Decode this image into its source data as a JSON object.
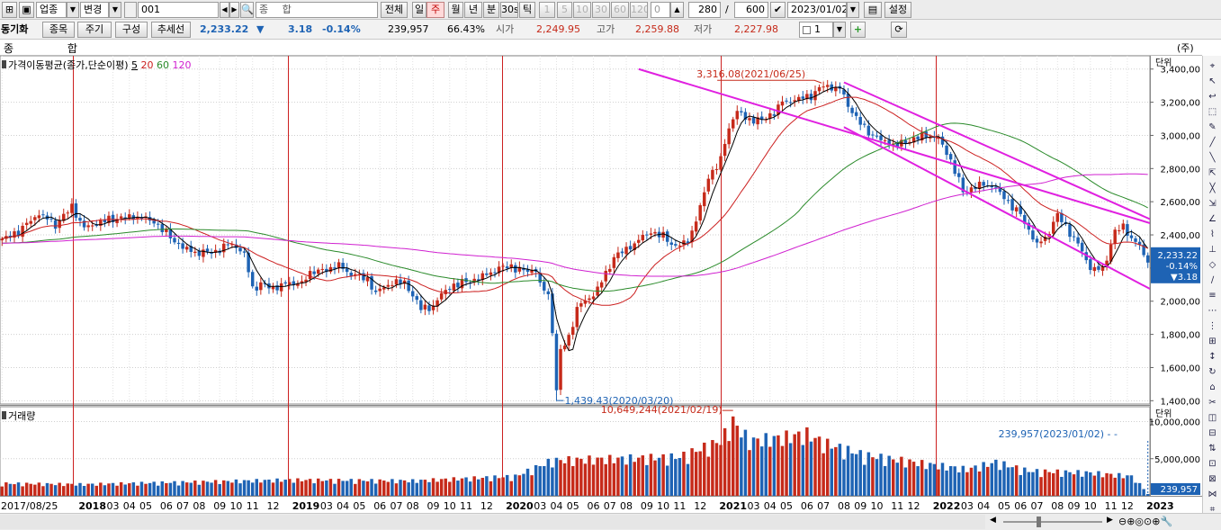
{
  "toolbar": {
    "market_type": "업종",
    "change_button": "변경",
    "code": "001",
    "name": "종 합",
    "all_button": "전체",
    "periods": [
      "일",
      "주",
      "월",
      "년",
      "분",
      "30s",
      "틱"
    ],
    "selected_period": "주",
    "minute_buttons": [
      "1",
      "5",
      "10",
      "30",
      "60",
      "120"
    ],
    "tick_value": "0",
    "count": "280",
    "total": "600",
    "date": "2023/01/02",
    "settings": "설정"
  },
  "toolbar2": {
    "sync_label": "동기화",
    "tabs": [
      "종목",
      "주기",
      "구성",
      "추세선"
    ],
    "price": "2,233.22",
    "change_arrow": "▼",
    "change": "3.18",
    "change_pct": "-0.14%",
    "volume": "239,957",
    "ratio": "66.43%",
    "open_label": "시가",
    "open": "2,249.95",
    "high_label": "고가",
    "high": "2,259.88",
    "low_label": "저가",
    "low": "2,227.98",
    "spin_value": "1"
  },
  "chart_header": {
    "name": "종 합",
    "unit_label": "(주)",
    "price_legend": "가격이동평균(종가,단순이평)",
    "ma_labels": [
      "5",
      "20",
      "60",
      "120"
    ],
    "volume_legend": "거래량",
    "axis_unit_price": "단위",
    "axis_unit_volume": "단위"
  },
  "colors": {
    "up": "#c62a1a",
    "down": "#1e63b4",
    "ma5": "#000000",
    "ma20": "#cc2020",
    "ma60": "#2a8a2a",
    "ma120": "#d020d0",
    "trendline": "#e020e0",
    "year_line": "#cc2020"
  },
  "annotations": {
    "high": "3,316.08(2021/06/25)",
    "low": "1,439.43(2020/03/20)",
    "vol_max": "10,649,244(2021/02/19)",
    "vol_last": "239,957(2023/01/02)"
  },
  "price_tag": {
    "value": "2,233.22",
    "pct": "-0.14%",
    "change": "▼3.18"
  },
  "volume_tag": "239,957",
  "chart_data": {
    "type": "candlestick",
    "price_axis": {
      "ticks": [
        1400,
        1600,
        1800,
        2000,
        2200,
        2400,
        2600,
        2800,
        3000,
        3200,
        3400
      ],
      "tick_labels": [
        "1,400,00",
        "1,600,00",
        "1,800,00",
        "2,000,00",
        "2,200,00",
        "2,400,00",
        "2,600,00",
        "2,800,00",
        "3,000,00",
        "3,200,00",
        "3,400,00"
      ],
      "range": [
        1380,
        3480
      ]
    },
    "volume_axis": {
      "ticks": [
        5000000,
        10000000
      ],
      "tick_labels": [
        "5,000,000",
        "10,000,000"
      ],
      "range": [
        0,
        12000000
      ]
    },
    "x_labels": [
      {
        "w": 0,
        "t": "2017/08/25",
        "year": false
      },
      {
        "w": 22,
        "t": "2018",
        "year": true
      },
      {
        "w": 27,
        "t": "03",
        "year": false
      },
      {
        "w": 31,
        "t": "04",
        "year": false
      },
      {
        "w": 35,
        "t": "05",
        "year": false
      },
      {
        "w": 40,
        "t": "06",
        "year": false
      },
      {
        "w": 44,
        "t": "07",
        "year": false
      },
      {
        "w": 48,
        "t": "08",
        "year": false
      },
      {
        "w": 53,
        "t": "09",
        "year": false
      },
      {
        "w": 57,
        "t": "10",
        "year": false
      },
      {
        "w": 61,
        "t": "11",
        "year": false
      },
      {
        "w": 66,
        "t": "12",
        "year": false
      },
      {
        "w": 74,
        "t": "2019",
        "year": true
      },
      {
        "w": 79,
        "t": "03",
        "year": false
      },
      {
        "w": 83,
        "t": "04",
        "year": false
      },
      {
        "w": 87,
        "t": "05",
        "year": false
      },
      {
        "w": 92,
        "t": "06",
        "year": false
      },
      {
        "w": 96,
        "t": "07",
        "year": false
      },
      {
        "w": 100,
        "t": "08",
        "year": false
      },
      {
        "w": 105,
        "t": "09",
        "year": false
      },
      {
        "w": 109,
        "t": "10",
        "year": false
      },
      {
        "w": 113,
        "t": "11",
        "year": false
      },
      {
        "w": 118,
        "t": "12",
        "year": false
      },
      {
        "w": 126,
        "t": "2020",
        "year": true
      },
      {
        "w": 131,
        "t": "03",
        "year": false
      },
      {
        "w": 135,
        "t": "04",
        "year": false
      },
      {
        "w": 139,
        "t": "05",
        "year": false
      },
      {
        "w": 144,
        "t": "06",
        "year": false
      },
      {
        "w": 148,
        "t": "07",
        "year": false
      },
      {
        "w": 152,
        "t": "08",
        "year": false
      },
      {
        "w": 157,
        "t": "09",
        "year": false
      },
      {
        "w": 161,
        "t": "10",
        "year": false
      },
      {
        "w": 165,
        "t": "11",
        "year": false
      },
      {
        "w": 170,
        "t": "12",
        "year": false
      },
      {
        "w": 178,
        "t": "2021",
        "year": true
      },
      {
        "w": 183,
        "t": "03",
        "year": false
      },
      {
        "w": 187,
        "t": "04",
        "year": false
      },
      {
        "w": 191,
        "t": "05",
        "year": false
      },
      {
        "w": 196,
        "t": "06",
        "year": false
      },
      {
        "w": 200,
        "t": "07",
        "year": false
      },
      {
        "w": 205,
        "t": "08",
        "year": false
      },
      {
        "w": 209,
        "t": "09",
        "year": false
      },
      {
        "w": 213,
        "t": "10",
        "year": false
      },
      {
        "w": 218,
        "t": "11",
        "year": false
      },
      {
        "w": 222,
        "t": "12",
        "year": false
      },
      {
        "w": 230,
        "t": "2022",
        "year": true
      },
      {
        "w": 235,
        "t": "03",
        "year": false
      },
      {
        "w": 239,
        "t": "04",
        "year": false
      },
      {
        "w": 244,
        "t": "05",
        "year": false
      },
      {
        "w": 248,
        "t": "06",
        "year": false
      },
      {
        "w": 252,
        "t": "07",
        "year": false
      },
      {
        "w": 257,
        "t": "08",
        "year": false
      },
      {
        "w": 261,
        "t": "09",
        "year": false
      },
      {
        "w": 265,
        "t": "10",
        "year": false
      },
      {
        "w": 270,
        "t": "11",
        "year": false
      },
      {
        "w": 274,
        "t": "12",
        "year": false
      },
      {
        "w": 282,
        "t": "2023",
        "year": true
      }
    ],
    "year_line_weeks": [
      18,
      71,
      124,
      178,
      231,
      284
    ],
    "trendlines": [
      {
        "w1": 155,
        "p1": 3400,
        "w2": 289,
        "p2": 2400
      },
      {
        "w1": 205,
        "p1": 3320,
        "w2": 289,
        "p2": 2390
      },
      {
        "w1": 205,
        "p1": 3050,
        "w2": 289,
        "p2": 1950
      }
    ],
    "weekly_close_anchors": [
      [
        0,
        2370
      ],
      [
        4,
        2420
      ],
      [
        9,
        2530
      ],
      [
        13,
        2460
      ],
      [
        17,
        2570
      ],
      [
        20,
        2440
      ],
      [
        24,
        2480
      ],
      [
        28,
        2500
      ],
      [
        33,
        2510
      ],
      [
        37,
        2480
      ],
      [
        40,
        2410
      ],
      [
        44,
        2320
      ],
      [
        48,
        2290
      ],
      [
        52,
        2300
      ],
      [
        56,
        2350
      ],
      [
        59,
        2280
      ],
      [
        61,
        2080
      ],
      [
        63,
        2100
      ],
      [
        66,
        2080
      ],
      [
        70,
        2110
      ],
      [
        73,
        2110
      ],
      [
        76,
        2190
      ],
      [
        79,
        2180
      ],
      [
        82,
        2230
      ],
      [
        84,
        2160
      ],
      [
        86,
        2170
      ],
      [
        89,
        2120
      ],
      [
        91,
        2060
      ],
      [
        94,
        2090
      ],
      [
        96,
        2130
      ],
      [
        98,
        2100
      ],
      [
        100,
        2040
      ],
      [
        102,
        1960
      ],
      [
        104,
        1950
      ],
      [
        107,
        2040
      ],
      [
        110,
        2100
      ],
      [
        114,
        2120
      ],
      [
        118,
        2160
      ],
      [
        121,
        2200
      ],
      [
        124,
        2210
      ],
      [
        127,
        2180
      ],
      [
        130,
        2190
      ],
      [
        131,
        2100
      ],
      [
        133,
        2030
      ],
      [
        134,
        1830
      ],
      [
        135,
        1460
      ],
      [
        136,
        1700
      ],
      [
        138,
        1780
      ],
      [
        140,
        1960
      ],
      [
        144,
        2040
      ],
      [
        147,
        2160
      ],
      [
        149,
        2270
      ],
      [
        152,
        2310
      ],
      [
        155,
        2370
      ],
      [
        158,
        2420
      ],
      [
        161,
        2390
      ],
      [
        164,
        2330
      ],
      [
        167,
        2360
      ],
      [
        170,
        2560
      ],
      [
        172,
        2750
      ],
      [
        175,
        2850
      ],
      [
        177,
        3050
      ],
      [
        179,
        3150
      ],
      [
        181,
        3100
      ],
      [
        185,
        3090
      ],
      [
        188,
        3140
      ],
      [
        190,
        3200
      ],
      [
        194,
        3220
      ],
      [
        197,
        3240
      ],
      [
        200,
        3300
      ],
      [
        204,
        3280
      ],
      [
        207,
        3140
      ],
      [
        210,
        3040
      ],
      [
        214,
        2970
      ],
      [
        218,
        2940
      ],
      [
        222,
        2980
      ],
      [
        225,
        3000
      ],
      [
        228,
        2980
      ],
      [
        231,
        2850
      ],
      [
        234,
        2660
      ],
      [
        238,
        2700
      ],
      [
        241,
        2700
      ],
      [
        245,
        2600
      ],
      [
        248,
        2520
      ],
      [
        252,
        2340
      ],
      [
        254,
        2380
      ],
      [
        257,
        2520
      ],
      [
        259,
        2450
      ],
      [
        261,
        2380
      ],
      [
        263,
        2300
      ],
      [
        265,
        2200
      ],
      [
        268,
        2190
      ],
      [
        271,
        2420
      ],
      [
        273,
        2450
      ],
      [
        275,
        2380
      ],
      [
        277,
        2330
      ],
      [
        279,
        2233
      ]
    ],
    "volume_profile": [
      [
        0,
        0.14
      ],
      [
        20,
        0.13
      ],
      [
        40,
        0.15
      ],
      [
        70,
        0.18
      ],
      [
        100,
        0.17
      ],
      [
        125,
        0.22
      ],
      [
        134,
        0.4
      ],
      [
        150,
        0.42
      ],
      [
        165,
        0.44
      ],
      [
        175,
        0.62
      ],
      [
        178,
        0.84
      ],
      [
        182,
        0.62
      ],
      [
        190,
        0.66
      ],
      [
        196,
        0.7
      ],
      [
        200,
        0.6
      ],
      [
        210,
        0.46
      ],
      [
        225,
        0.36
      ],
      [
        235,
        0.3
      ],
      [
        242,
        0.38
      ],
      [
        250,
        0.28
      ],
      [
        265,
        0.26
      ],
      [
        275,
        0.22
      ],
      [
        279,
        0.04
      ]
    ],
    "weeks_total": 280
  },
  "bottom": {
    "x_scroll_buttons": [
      "◀",
      "▶"
    ]
  }
}
